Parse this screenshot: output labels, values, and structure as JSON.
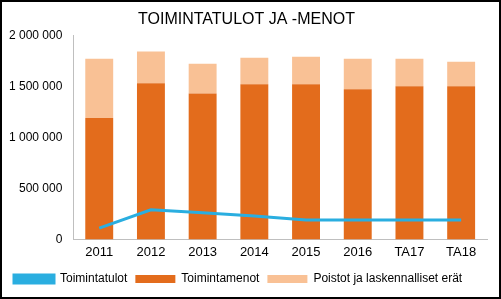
{
  "chart_data": {
    "type": "bar",
    "title": "TOIMINTATULOT JA -MENOT",
    "categories": [
      "2011",
      "2012",
      "2013",
      "2014",
      "2015",
      "2016",
      "TA17",
      "TA18"
    ],
    "stacked": true,
    "grid": false,
    "legend": "bottom",
    "series": [
      {
        "name": "Toimintamenot",
        "type": "bar",
        "color": "#e36c1c",
        "values": [
          1190000,
          1530000,
          1430000,
          1520000,
          1520000,
          1470000,
          1500000,
          1500000
        ]
      },
      {
        "name": "Poistot ja laskennalliset erät",
        "type": "bar",
        "color": "#f9c195",
        "values": [
          580000,
          310000,
          290000,
          260000,
          270000,
          300000,
          270000,
          240000
        ]
      },
      {
        "name": "Toimintatulot",
        "type": "line",
        "color": "#2aaee0",
        "values": [
          110000,
          290000,
          260000,
          230000,
          190000,
          190000,
          190000,
          190000
        ]
      }
    ],
    "ylim": [
      0,
      2000000
    ],
    "yticks": [
      0,
      {
        "value": 500000,
        "label": "500 000"
      },
      {
        "value": 1000000,
        "label": "1 000 000"
      },
      {
        "value": 1500000,
        "label": "1 500 000"
      },
      {
        "value": 2000000,
        "label": "2 000 000"
      }
    ]
  }
}
